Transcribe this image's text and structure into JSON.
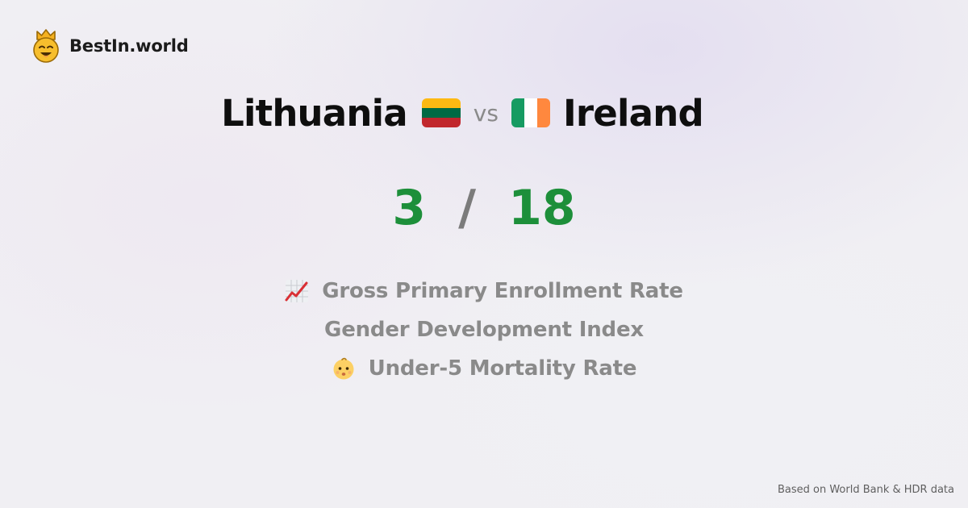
{
  "brand": {
    "name": "BestIn.world",
    "icon": "crown-smiley-icon"
  },
  "comparison": {
    "country_a": {
      "name": "Lithuania",
      "flag": "lithuania-flag-icon"
    },
    "vs_label": "vs",
    "country_b": {
      "name": "Ireland",
      "flag": "ireland-flag-icon"
    }
  },
  "score": {
    "a": "3",
    "separator": "/",
    "b": "18"
  },
  "metrics": [
    {
      "label": "Gross Primary Enrollment Rate",
      "icon": "chart-increasing-icon"
    },
    {
      "label": "Gender Development Index",
      "icon": ""
    },
    {
      "label": "Under-5 Mortality Rate",
      "icon": "baby-face-icon"
    }
  ],
  "footer": {
    "source": "Based on World Bank & HDR data"
  },
  "colors": {
    "score_green": "#1d8f3a",
    "muted_text": "#8a8a8a",
    "title_text": "#0e0e0e",
    "background": "#f0eff3"
  }
}
